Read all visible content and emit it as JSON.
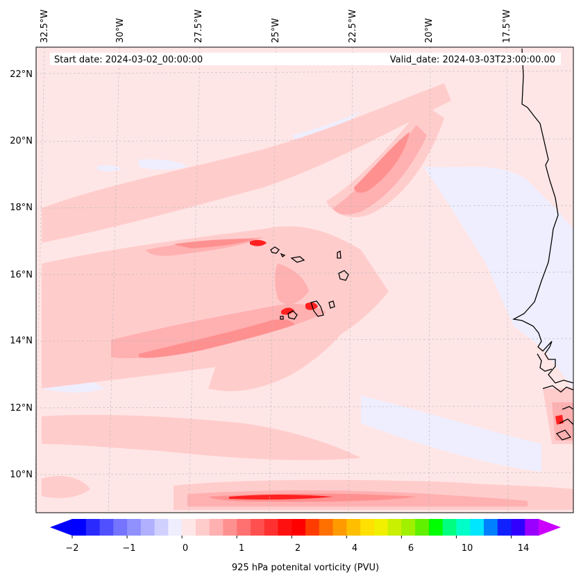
{
  "header": {
    "start_date": "Start date: 2024-03-02_00:00:00",
    "valid_date": "Valid_date: 2024-03-03T23:00:00.00"
  },
  "map": {
    "region": "Cape Verde / West African coast",
    "variable": "925 hPa potential vorticity",
    "lon_labels": [
      "32.5°W",
      "30°W",
      "27.5°W",
      "25°W",
      "22.5°W",
      "20°W",
      "17.5°W"
    ],
    "lat_labels": [
      "22°N",
      "20°N",
      "18°N",
      "16°N",
      "14°N",
      "12°N",
      "10°N"
    ]
  },
  "colorbar": {
    "label": "925 hPa potenital vorticity (PVU)",
    "tick_labels": [
      "−2",
      "−1",
      "0",
      "1",
      "2",
      "4",
      "6",
      "10",
      "14"
    ],
    "colors": [
      "#0000ff",
      "#2a2aff",
      "#5050ff",
      "#7474ff",
      "#9090ff",
      "#b0b0ff",
      "#d0d0ff",
      "#eeeeff",
      "#ffe6e6",
      "#ffcccc",
      "#ffb0b0",
      "#ff9090",
      "#ff7070",
      "#ff5050",
      "#ff3030",
      "#ff1010",
      "#ff0000",
      "#ff3c00",
      "#ff7000",
      "#ff9a00",
      "#ffbf00",
      "#ffe000",
      "#f0f000",
      "#c8f000",
      "#a0f000",
      "#60f000",
      "#00ff00",
      "#00ff80",
      "#00ffc8",
      "#00e6ff",
      "#0080ff",
      "#1020ff",
      "#3000ff",
      "#9900ff"
    ],
    "extend_low_color": "#0000ff",
    "extend_high_color": "#cc00ff"
  },
  "colors": {
    "background_pv": "#ffe6e6",
    "light_pink": "#ffcccc",
    "mid_pink": "#ff9090",
    "strong_red": "#ff2020",
    "light_blue": "#eeeeff",
    "mid_blue": "#9090ff",
    "coast": "#000000"
  }
}
